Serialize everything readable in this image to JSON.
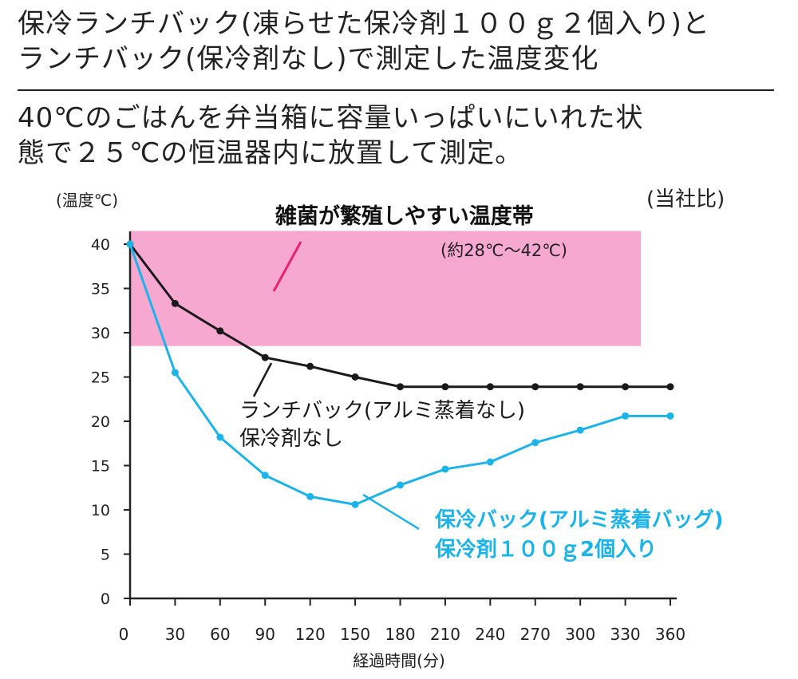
{
  "header": {
    "title_line1": "保冷ランチバック(凍らせた保冷剤１００ｇ２個入り)と",
    "title_line2": "ランチバック(保冷剤なし)で測定した温度変化",
    "subtitle_line1": "40℃のごはんを弁当箱に容量いっぱいにいれた状",
    "subtitle_line2": "態で２５℃の恒温器内に放置して測定。"
  },
  "chart_data": {
    "type": "line",
    "ylabel": "(温度℃)",
    "xlabel": "経過時間(分)",
    "note": "(当社比)",
    "xlim": [
      0,
      360
    ],
    "ylim": [
      0,
      40
    ],
    "x_ticks": [
      0,
      30,
      60,
      90,
      120,
      150,
      180,
      210,
      240,
      270,
      300,
      330,
      360
    ],
    "y_ticks": [
      0,
      5,
      10,
      15,
      20,
      25,
      30,
      35,
      40
    ],
    "band": {
      "label": "雑菌が繁殖しやすい温度帯",
      "sublabel": "(約28℃～42℃)",
      "y_range": [
        28.5,
        41.5
      ],
      "color": "#f7a8d0"
    },
    "series": [
      {
        "name_line1": "ランチバック(アルミ蒸着なし)",
        "name_line2": "保冷剤なし",
        "color": "#1a1a1a",
        "x": [
          0,
          30,
          60,
          90,
          120,
          150,
          180,
          210,
          240,
          270,
          300,
          330,
          360
        ],
        "values": [
          40,
          33.3,
          30.2,
          27.2,
          26.2,
          25.0,
          23.9,
          23.9,
          23.9,
          23.9,
          23.9,
          23.9,
          23.9
        ]
      },
      {
        "name_line1": "保冷バック(アルミ蒸着バッグ)",
        "name_line2": "保冷剤１００ｇ2個入り",
        "color": "#1cb4e8",
        "x": [
          0,
          30,
          60,
          90,
          120,
          150,
          180,
          210,
          240,
          270,
          300,
          330,
          360
        ],
        "values": [
          40,
          25.5,
          18.2,
          13.9,
          11.5,
          10.6,
          12.8,
          14.6,
          15.4,
          17.6,
          19.0,
          20.6,
          20.6
        ]
      }
    ]
  }
}
